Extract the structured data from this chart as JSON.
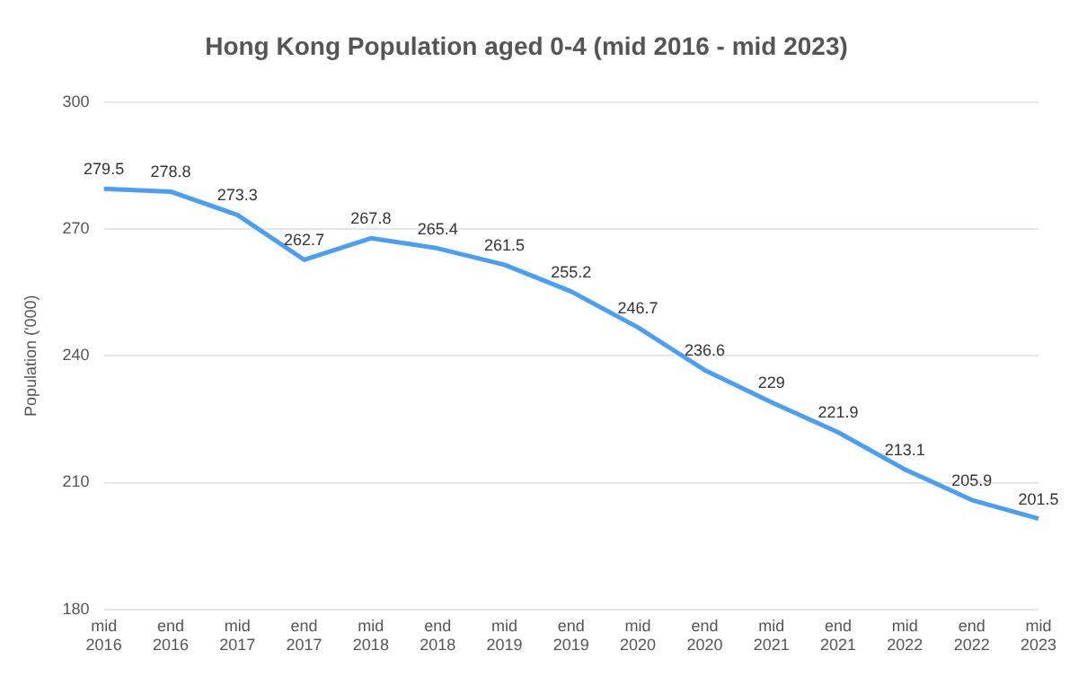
{
  "chart_data": {
    "type": "line",
    "title": "Hong Kong Population aged 0-4 (mid 2016 - mid 2023)",
    "ylabel": "Population ('000)",
    "categories": [
      "mid 2016",
      "end 2016",
      "mid 2017",
      "end 2017",
      "mid 2018",
      "end 2018",
      "mid 2019",
      "end 2019",
      "mid 2020",
      "end 2020",
      "mid 2021",
      "end 2021",
      "mid 2022",
      "end 2022",
      "mid 2023"
    ],
    "series": [
      {
        "color": "#4a9ff5",
        "values": [
          279.5,
          278.8,
          273.3,
          262.7,
          267.8,
          265.4,
          261.5,
          255.2,
          246.7,
          236.6,
          229,
          221.9,
          213.1,
          205.9,
          201.5
        ]
      }
    ],
    "ylim": [
      180,
      300
    ],
    "yticks": [
      180,
      210,
      240,
      270,
      300
    ],
    "grid": "y",
    "data_labels": true,
    "legend": false,
    "marker": "none",
    "line_style": "solid"
  }
}
